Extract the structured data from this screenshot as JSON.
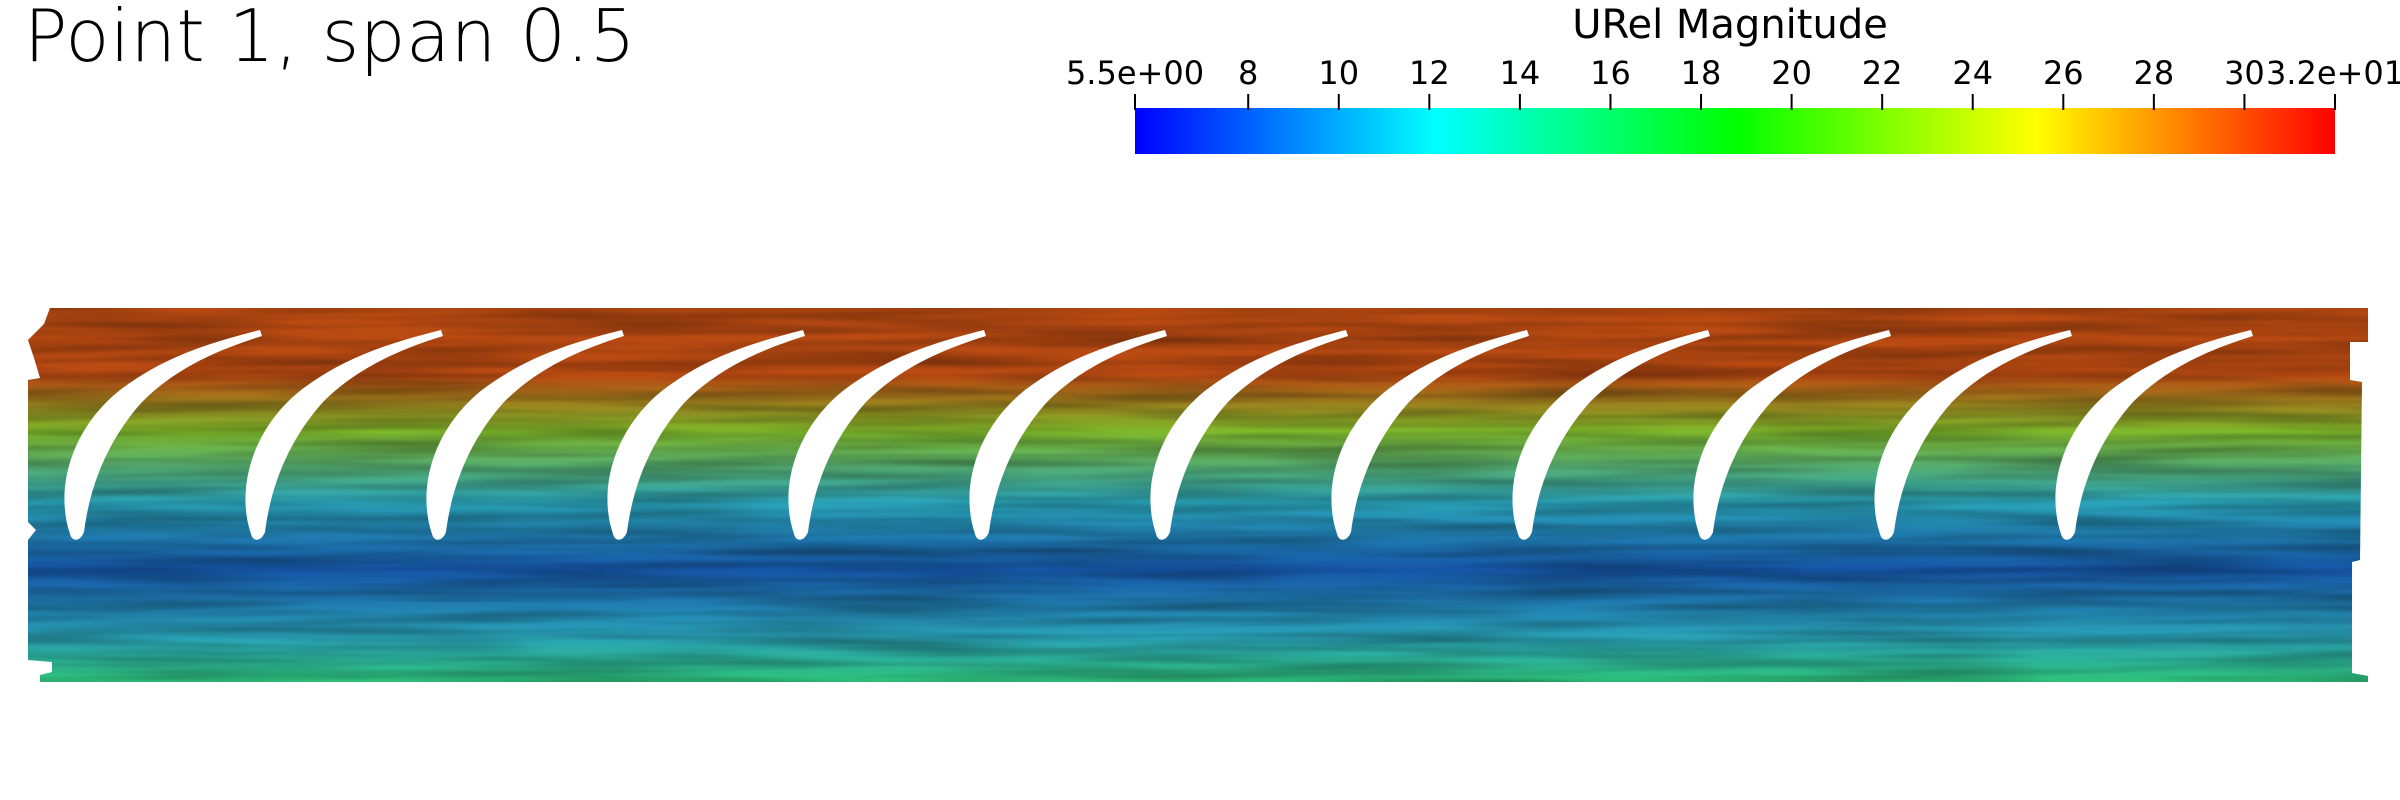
{
  "title": "Point 1, span 0.5",
  "colorbar": {
    "title": "URel Magnitude",
    "min": 5.5,
    "max": 32,
    "tick_labels": [
      {
        "label": "5.5e+00",
        "value": 5.5
      },
      {
        "label": "8",
        "value": 8
      },
      {
        "label": "10",
        "value": 10
      },
      {
        "label": "12",
        "value": 12
      },
      {
        "label": "14",
        "value": 14
      },
      {
        "label": "16",
        "value": 16
      },
      {
        "label": "18",
        "value": 18
      },
      {
        "label": "20",
        "value": 20
      },
      {
        "label": "22",
        "value": 22
      },
      {
        "label": "24",
        "value": 24
      },
      {
        "label": "26",
        "value": 26
      },
      {
        "label": "28",
        "value": 28
      },
      {
        "label": "30",
        "value": 30
      },
      {
        "label": "3.2e+01",
        "value": 32
      }
    ],
    "colors": [
      "#0000ff",
      "#00ffff",
      "#00ff00",
      "#ffff00",
      "#ff0000"
    ]
  },
  "visualization": {
    "blade_count": 12,
    "colors": {
      "outlet_high": "#b94a12",
      "transition": "#7fb82a",
      "passage": "#2aa3b8",
      "low": "#1656a8",
      "inlet": "#2ec27a"
    }
  }
}
